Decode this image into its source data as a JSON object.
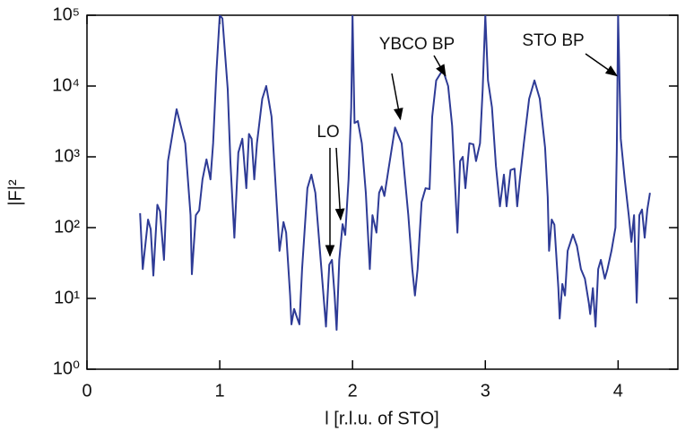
{
  "chart_data": {
    "type": "line",
    "x_label": "l [r.l.u. of STO]",
    "y_label": "|F|²",
    "log_y": true,
    "color": "#2e3b96",
    "xlim": [
      0,
      4.45
    ],
    "ylim": [
      1,
      100000
    ],
    "xticks": [
      0,
      1,
      2,
      3,
      4
    ],
    "yticks": [
      {
        "value": 1,
        "label": "10⁰"
      },
      {
        "value": 10,
        "label": "10¹"
      },
      {
        "value": 100,
        "label": "10²"
      },
      {
        "value": 1000,
        "label": "10³"
      },
      {
        "value": 10000,
        "label": "10⁴"
      },
      {
        "value": 100000,
        "label": "10⁵"
      }
    ],
    "x": [
      0.4,
      0.42,
      0.46,
      0.48,
      0.5,
      0.53,
      0.55,
      0.58,
      0.61,
      0.675,
      0.74,
      0.78,
      0.79,
      0.82,
      0.845,
      0.87,
      0.9,
      0.92,
      0.93,
      0.95,
      0.975,
      1.0,
      1.02,
      1.06,
      1.08,
      1.11,
      1.14,
      1.17,
      1.2,
      1.22,
      1.24,
      1.26,
      1.28,
      1.32,
      1.35,
      1.39,
      1.43,
      1.45,
      1.48,
      1.5,
      1.53,
      1.54,
      1.56,
      1.58,
      1.6,
      1.62,
      1.66,
      1.69,
      1.72,
      1.76,
      1.8,
      1.825,
      1.845,
      1.865,
      1.88,
      1.9,
      1.925,
      1.945,
      1.97,
      1.99,
      2.0,
      2.015,
      2.04,
      2.07,
      2.1,
      2.13,
      2.15,
      2.18,
      2.2,
      2.22,
      2.24,
      2.27,
      2.32,
      2.37,
      2.42,
      2.45,
      2.47,
      2.49,
      2.52,
      2.55,
      2.58,
      2.6,
      2.63,
      2.68,
      2.72,
      2.75,
      2.78,
      2.79,
      2.81,
      2.83,
      2.85,
      2.88,
      2.91,
      2.93,
      2.96,
      2.98,
      3.0,
      3.02,
      3.05,
      3.08,
      3.11,
      3.14,
      3.16,
      3.19,
      3.22,
      3.24,
      3.26,
      3.29,
      3.33,
      3.37,
      3.41,
      3.45,
      3.47,
      3.48,
      3.5,
      3.52,
      3.55,
      3.56,
      3.58,
      3.6,
      3.62,
      3.66,
      3.69,
      3.72,
      3.75,
      3.78,
      3.79,
      3.81,
      3.83,
      3.85,
      3.87,
      3.9,
      3.92,
      3.95,
      3.98,
      3.99,
      4.0,
      4.02,
      4.05,
      4.08,
      4.1,
      4.12,
      4.14,
      4.16,
      4.18,
      4.2,
      4.22,
      4.24
    ],
    "values": [
      160,
      26,
      130,
      95,
      21,
      210,
      170,
      35,
      870,
      4700,
      1550,
      150,
      22,
      150,
      175,
      480,
      920,
      600,
      480,
      1550,
      16000,
      100000,
      90000,
      9000,
      870,
      72,
      1150,
      1800,
      360,
      2100,
      1800,
      480,
      1550,
      6600,
      10000,
      3700,
      200,
      47,
      120,
      85,
      11,
      4.3,
      7.1,
      5.5,
      4.3,
      26,
      360,
      560,
      310,
      35,
      4,
      30,
      35,
      11,
      3.6,
      35,
      112,
      79,
      480,
      5000,
      100000,
      3000,
      3200,
      1550,
      310,
      26,
      150,
      85,
      310,
      380,
      280,
      650,
      2600,
      1550,
      150,
      26,
      11,
      26,
      230,
      360,
      350,
      3700,
      12000,
      17000,
      10000,
      2750,
      200,
      85,
      870,
      1000,
      360,
      1550,
      1500,
      870,
      1550,
      8900,
      100000,
      12000,
      5000,
      740,
      200,
      560,
      200,
      650,
      680,
      200,
      480,
      1550,
      6600,
      12000,
      6600,
      1350,
      270,
      47,
      130,
      110,
      14,
      5.2,
      16,
      11,
      47,
      80,
      55,
      26,
      19,
      8.5,
      6,
      14,
      4,
      26,
      35,
      19,
      26,
      47,
      100,
      1200,
      100000,
      1800,
      480,
      150,
      63,
      150,
      8.7,
      150,
      180,
      72,
      180,
      310
    ],
    "annotations": [
      {
        "text": "LO",
        "targets": [
          [
            1.83,
            40
          ],
          [
            1.91,
            130
          ]
        ]
      },
      {
        "text": "YBCO BP",
        "targets": [
          [
            2.36,
            3400
          ],
          [
            2.7,
            14000
          ]
        ]
      },
      {
        "text": "STO BP",
        "targets": [
          [
            3.99,
            14000
          ]
        ]
      }
    ]
  }
}
